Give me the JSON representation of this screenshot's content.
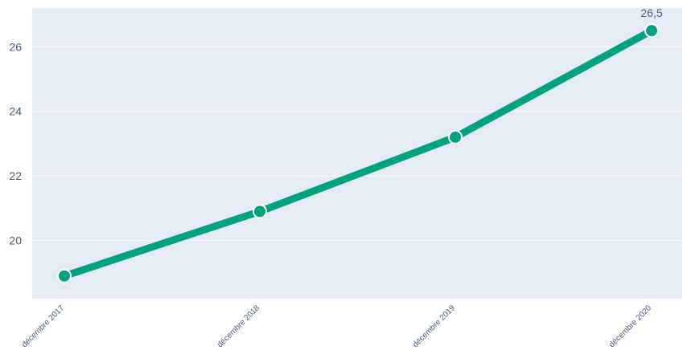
{
  "chart_data": {
    "type": "line",
    "categories": [
      "décembre 2017",
      "décembre 2018",
      "décembre 2019",
      "décembre 2020"
    ],
    "series": [
      {
        "values": [
          18.9,
          20.9,
          23.2,
          26.5
        ]
      }
    ],
    "annotations": [
      {
        "index": 3,
        "text": "26,5"
      }
    ],
    "y_ticks": [
      20,
      22,
      24,
      26
    ],
    "y_tick_labels": [
      "20",
      "22",
      "24",
      "26"
    ],
    "ylim": [
      18.2,
      27.2
    ],
    "grid": true,
    "legend": "none",
    "colors": {
      "line": "#00a37e",
      "plot_background": "#e5ecf6",
      "grid": "#ffffff",
      "text": "#4a5878",
      "marker_stroke": "#ffffff"
    }
  }
}
